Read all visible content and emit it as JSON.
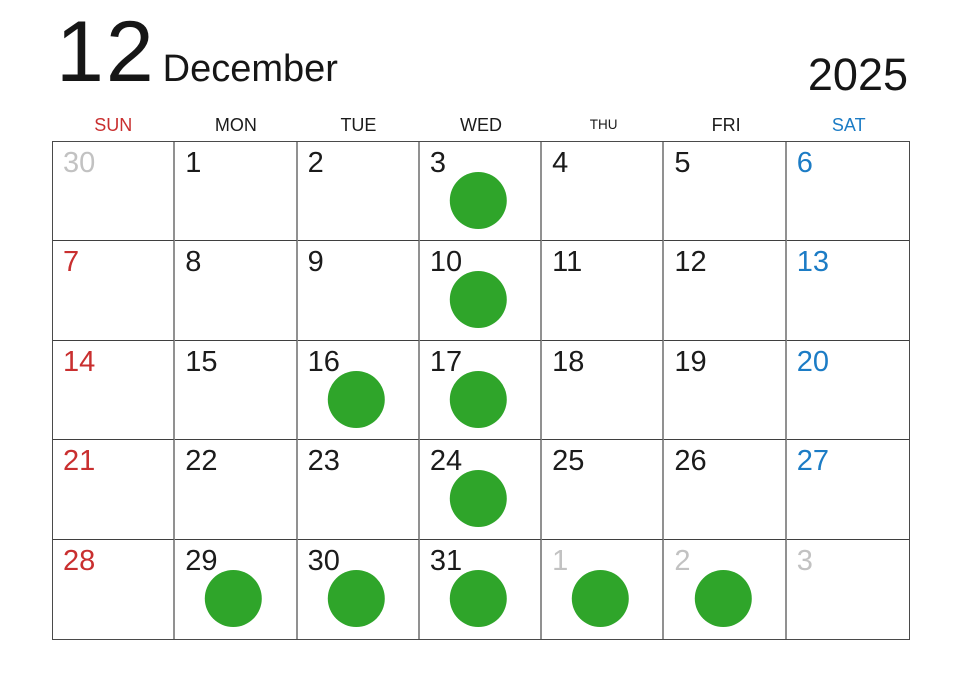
{
  "title": {
    "month_number": "12",
    "month_name": "December",
    "year": "2025"
  },
  "day_headers": [
    {
      "label": "SUN",
      "type": "sunday"
    },
    {
      "label": "MON",
      "type": "weekday"
    },
    {
      "label": "TUE",
      "type": "weekday"
    },
    {
      "label": "WED",
      "type": "weekday"
    },
    {
      "label": "THU",
      "type": "weekday"
    },
    {
      "label": "FRI",
      "type": "weekday"
    },
    {
      "label": "SAT",
      "type": "saturday"
    }
  ],
  "colors": {
    "sunday": "#c92f2f",
    "saturday": "#1c7cc5",
    "weekday": "#1b1b1b",
    "adjacent": "#c2c2c2",
    "dot": "#2fa52a",
    "grid_vertical": "#919191",
    "grid_horizontal": "#3f3f3f"
  },
  "weeks": [
    [
      {
        "day": "30",
        "type": "adjacent",
        "dot": false
      },
      {
        "day": "1",
        "type": "weekday",
        "dot": false
      },
      {
        "day": "2",
        "type": "weekday",
        "dot": false
      },
      {
        "day": "3",
        "type": "weekday",
        "dot": true
      },
      {
        "day": "4",
        "type": "weekday",
        "dot": false
      },
      {
        "day": "5",
        "type": "weekday",
        "dot": false
      },
      {
        "day": "6",
        "type": "saturday",
        "dot": false
      }
    ],
    [
      {
        "day": "7",
        "type": "sunday",
        "dot": false
      },
      {
        "day": "8",
        "type": "weekday",
        "dot": false
      },
      {
        "day": "9",
        "type": "weekday",
        "dot": false
      },
      {
        "day": "10",
        "type": "weekday",
        "dot": true
      },
      {
        "day": "11",
        "type": "weekday",
        "dot": false
      },
      {
        "day": "12",
        "type": "weekday",
        "dot": false
      },
      {
        "day": "13",
        "type": "saturday",
        "dot": false
      }
    ],
    [
      {
        "day": "14",
        "type": "sunday",
        "dot": false
      },
      {
        "day": "15",
        "type": "weekday",
        "dot": false
      },
      {
        "day": "16",
        "type": "weekday",
        "dot": true
      },
      {
        "day": "17",
        "type": "weekday",
        "dot": true
      },
      {
        "day": "18",
        "type": "weekday",
        "dot": false
      },
      {
        "day": "19",
        "type": "weekday",
        "dot": false
      },
      {
        "day": "20",
        "type": "saturday",
        "dot": false
      }
    ],
    [
      {
        "day": "21",
        "type": "sunday",
        "dot": false
      },
      {
        "day": "22",
        "type": "weekday",
        "dot": false
      },
      {
        "day": "23",
        "type": "weekday",
        "dot": false
      },
      {
        "day": "24",
        "type": "weekday",
        "dot": true
      },
      {
        "day": "25",
        "type": "weekday",
        "dot": false
      },
      {
        "day": "26",
        "type": "weekday",
        "dot": false
      },
      {
        "day": "27",
        "type": "saturday",
        "dot": false
      }
    ],
    [
      {
        "day": "28",
        "type": "sunday",
        "dot": false
      },
      {
        "day": "29",
        "type": "weekday",
        "dot": true
      },
      {
        "day": "30",
        "type": "weekday",
        "dot": true
      },
      {
        "day": "31",
        "type": "weekday",
        "dot": true
      },
      {
        "day": "1",
        "type": "adjacent",
        "dot": true
      },
      {
        "day": "2",
        "type": "adjacent",
        "dot": true
      },
      {
        "day": "3",
        "type": "adjacent",
        "dot": false
      }
    ]
  ]
}
